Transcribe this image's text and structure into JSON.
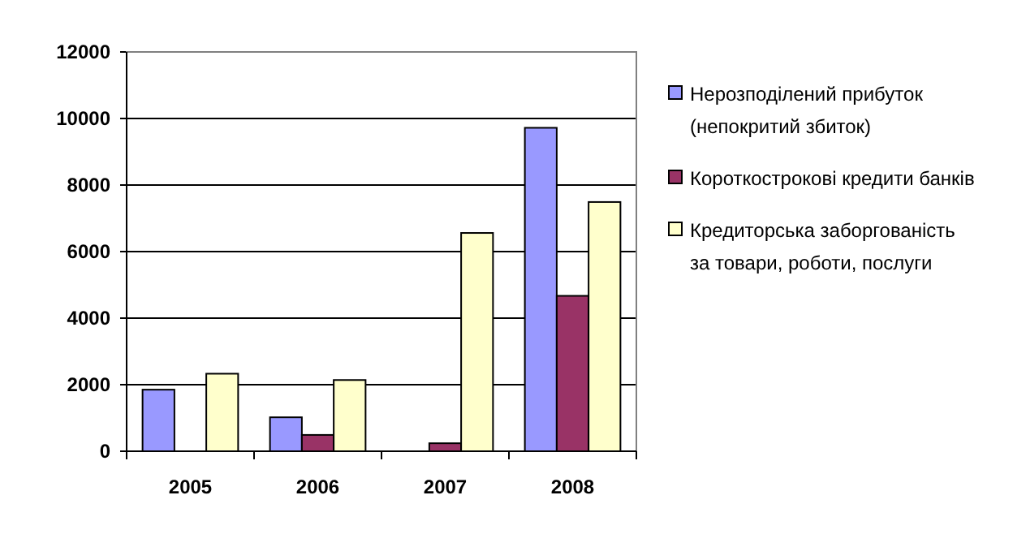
{
  "chart_data": {
    "type": "bar",
    "categories": [
      "2005",
      "2006",
      "2007",
      "2008"
    ],
    "series": [
      {
        "name": "Нерозподілений прибуток (непокритий збиток)",
        "color": "#9999ff",
        "values": [
          1850,
          1020,
          0,
          9720
        ]
      },
      {
        "name": "Короткострокові кредити банків",
        "color": "#993366",
        "values": [
          0,
          490,
          240,
          4670
        ]
      },
      {
        "name": "Кредиторська заборгованість за товари, роботи, послуги",
        "color": "#ffffcc",
        "values": [
          2330,
          2140,
          6560,
          7490
        ]
      }
    ],
    "ylim": [
      0,
      12000
    ],
    "yticks": [
      0,
      2000,
      4000,
      6000,
      8000,
      10000,
      12000
    ],
    "grid": "y",
    "legend": "right"
  }
}
